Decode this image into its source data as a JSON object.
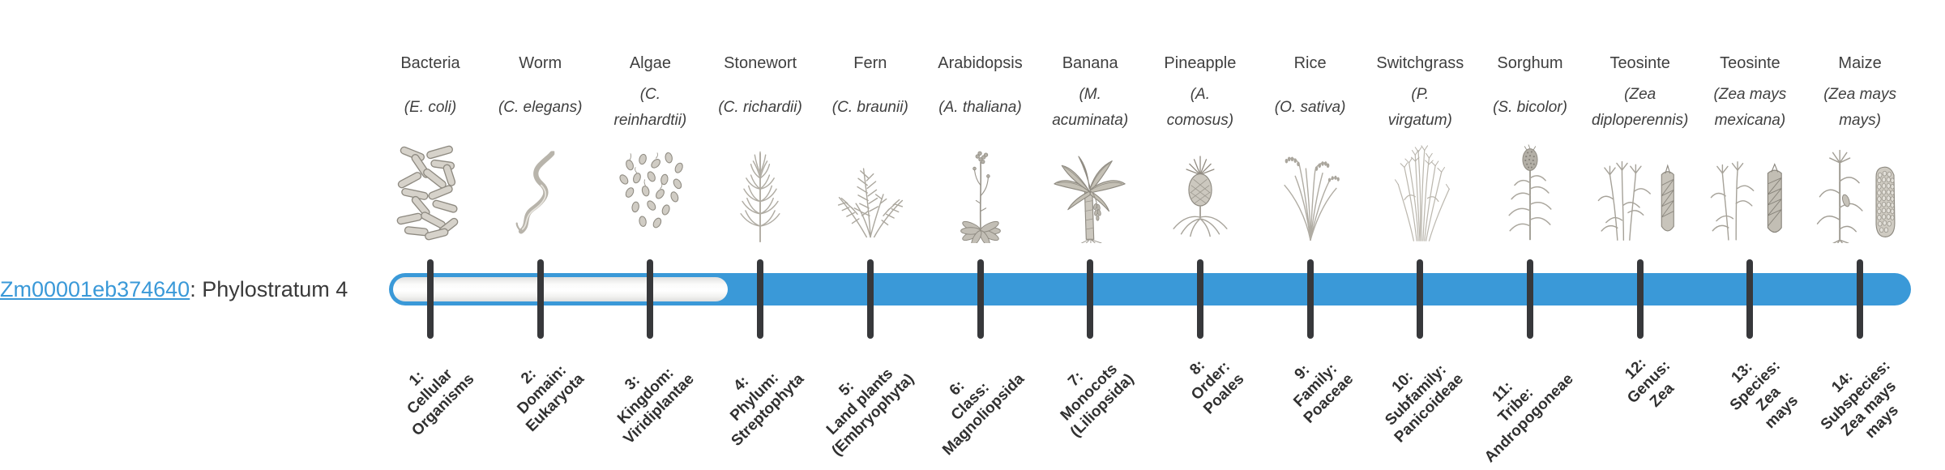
{
  "gene": {
    "id": "Zm00001eb374640",
    "suffix": ": Phylostratum 4"
  },
  "bar": {
    "origin_stratum": 4,
    "total_strata": 14,
    "fill_color": "#3a99d8",
    "tick_color": "#37383b"
  },
  "strata": [
    {
      "n": 1,
      "name": "Bacteria",
      "species": "(E. coli)",
      "stage_label": "1:\nCellular\nOrganisms",
      "icon": "bacteria",
      "filled": false
    },
    {
      "n": 2,
      "name": "Worm",
      "species": "(C. elegans)",
      "stage_label": "2:\nDomain:\nEukaryota",
      "icon": "worm",
      "filled": false
    },
    {
      "n": 3,
      "name": "Algae",
      "species": "(C.\nreinhardtii)",
      "stage_label": "3:\nKingdom:\nViridiplantae",
      "icon": "algae",
      "filled": false
    },
    {
      "n": 4,
      "name": "Stonewort",
      "species": "(C. richardii)",
      "stage_label": "4:\nPhylum:\nStreptophyta",
      "icon": "stonewort",
      "filled": true
    },
    {
      "n": 5,
      "name": "Fern",
      "species": "(C. braunii)",
      "stage_label": "5:\nLand plants\n(Embryophyta)",
      "icon": "fern",
      "filled": true
    },
    {
      "n": 6,
      "name": "Arabidopsis",
      "species": "(A. thaliana)",
      "stage_label": "6:\nClass:\nMagnoliopsida",
      "icon": "arabidopsis",
      "filled": true
    },
    {
      "n": 7,
      "name": "Banana",
      "species": "(M.\nacuminata)",
      "stage_label": "7:\nMonocots\n(Liliopsida)",
      "icon": "banana",
      "filled": true
    },
    {
      "n": 8,
      "name": "Pineapple",
      "species": "(A.\ncomosus)",
      "stage_label": "8:\nOrder:\nPoales",
      "icon": "pineapple",
      "filled": true
    },
    {
      "n": 9,
      "name": "Rice",
      "species": "(O. sativa)",
      "stage_label": "9:\nFamily:\nPoaceae",
      "icon": "rice",
      "filled": true
    },
    {
      "n": 10,
      "name": "Switchgrass",
      "species": "(P.\nvirgatum)",
      "stage_label": "10:\nSubfamily:\nPanicoideae",
      "icon": "switchgrass",
      "filled": true
    },
    {
      "n": 11,
      "name": "Sorghum",
      "species": "(S. bicolor)",
      "stage_label": "11:\nTribe:\nAndropogoneae",
      "icon": "sorghum",
      "filled": true
    },
    {
      "n": 12,
      "name": "Teosinte",
      "species": "(Zea\ndiploperennis)",
      "stage_label": "12:\nGenus:\nZea",
      "icon": "teosinte-diploperennis",
      "filled": true
    },
    {
      "n": 13,
      "name": "Teosinte",
      "species": "(Zea mays\nmexicana)",
      "stage_label": "13:\nSpecies:\nZea\nmays",
      "icon": "teosinte-mexicana",
      "filled": true
    },
    {
      "n": 14,
      "name": "Maize",
      "species": "(Zea mays\nmays)",
      "stage_label": "14:\nSubspecies:\nZea mays\nmays",
      "icon": "maize",
      "filled": true
    }
  ]
}
